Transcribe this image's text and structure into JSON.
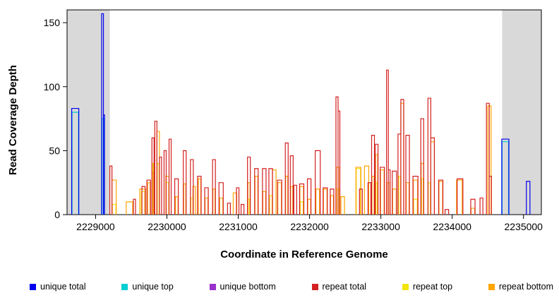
{
  "chart_data": {
    "type": "line",
    "title": "",
    "xlabel": "Coordinate in Reference Genome",
    "ylabel": "Read Coverage Depth",
    "xlim": [
      2228600,
      2235250
    ],
    "ylim": [
      0,
      160
    ],
    "xticks": [
      2229000,
      2230000,
      2231000,
      2232000,
      2233000,
      2234000,
      2235000
    ],
    "yticks": [
      0,
      50,
      100,
      150
    ],
    "grid": false,
    "legend_position": "bottom",
    "shade_color": "#d9d9d9",
    "shaded_regions": [
      [
        2228600,
        2229200
      ],
      [
        2234700,
        2235250
      ]
    ],
    "legend": [
      {
        "label": "unique total",
        "color": "#0000EE"
      },
      {
        "label": "unique top",
        "color": "#00CED1"
      },
      {
        "label": "unique bottom",
        "color": "#9932CC"
      },
      {
        "label": "repeat total",
        "color": "#D42020"
      },
      {
        "label": "repeat top",
        "color": "#F2E50B"
      },
      {
        "label": "repeat bottom",
        "color": "#FFA500"
      }
    ],
    "draw_order": [
      "repeat top",
      "repeat bottom",
      "repeat total",
      "unique top",
      "unique bottom",
      "unique total"
    ],
    "segments": [
      [
        "unique top",
        2228670,
        2228760,
        80
      ],
      [
        "unique total",
        2228665,
        2228765,
        83
      ],
      [
        "unique top",
        2229090,
        2229120,
        75
      ],
      [
        "unique total",
        2229085,
        2229110,
        157
      ],
      [
        "unique total",
        2229110,
        2229125,
        78
      ],
      [
        "repeat total",
        2229200,
        2229230,
        38
      ],
      [
        "repeat bottom",
        2229230,
        2229290,
        27
      ],
      [
        "repeat top",
        2229235,
        2229285,
        8
      ],
      [
        "repeat bottom",
        2229430,
        2229520,
        10
      ],
      [
        "repeat total",
        2229530,
        2229560,
        12
      ],
      [
        "repeat bottom",
        2229620,
        2229700,
        20
      ],
      [
        "repeat top",
        2229640,
        2229690,
        18
      ],
      [
        "repeat total",
        2229650,
        2229695,
        22
      ],
      [
        "repeat total",
        2229720,
        2229770,
        27
      ],
      [
        "repeat bottom",
        2229730,
        2229765,
        25
      ],
      [
        "repeat total",
        2229790,
        2229820,
        60
      ],
      [
        "repeat bottom",
        2229795,
        2229815,
        33
      ],
      [
        "repeat top",
        2229798,
        2229812,
        40
      ],
      [
        "repeat total",
        2229830,
        2229860,
        73
      ],
      [
        "repeat bottom",
        2229860,
        2229895,
        65
      ],
      [
        "repeat top",
        2229865,
        2229890,
        40
      ],
      [
        "repeat total",
        2229895,
        2229925,
        45
      ],
      [
        "repeat total",
        2229960,
        2229990,
        50
      ],
      [
        "repeat bottom",
        2229985,
        2230030,
        30
      ],
      [
        "repeat top",
        2229990,
        2230025,
        25
      ],
      [
        "repeat total",
        2230030,
        2230060,
        59
      ],
      [
        "repeat total",
        2230110,
        2230160,
        28
      ],
      [
        "repeat bottom",
        2230120,
        2230155,
        14
      ],
      [
        "repeat total",
        2230230,
        2230270,
        50
      ],
      [
        "repeat bottom",
        2230235,
        2230265,
        24
      ],
      [
        "repeat total",
        2230330,
        2230370,
        43
      ],
      [
        "repeat top",
        2230335,
        2230365,
        13
      ],
      [
        "repeat bottom",
        2230365,
        2230400,
        22
      ],
      [
        "repeat total",
        2230430,
        2230480,
        30
      ],
      [
        "repeat bottom",
        2230440,
        2230475,
        28
      ],
      [
        "repeat total",
        2230530,
        2230580,
        21
      ],
      [
        "repeat bottom",
        2230535,
        2230575,
        13
      ],
      [
        "repeat total",
        2230640,
        2230680,
        43
      ],
      [
        "repeat bottom",
        2230645,
        2230675,
        20
      ],
      [
        "repeat total",
        2230730,
        2230790,
        25
      ],
      [
        "repeat bottom",
        2230740,
        2230785,
        13
      ],
      [
        "repeat total",
        2230850,
        2230890,
        9
      ],
      [
        "repeat bottom",
        2230930,
        2230980,
        17
      ],
      [
        "repeat total",
        2230975,
        2231010,
        21
      ],
      [
        "repeat total",
        2231040,
        2231080,
        8
      ],
      [
        "repeat total",
        2231130,
        2231170,
        45
      ],
      [
        "repeat bottom",
        2231135,
        2231165,
        25
      ],
      [
        "repeat top",
        2231140,
        2231160,
        12
      ],
      [
        "repeat total",
        2231230,
        2231280,
        36
      ],
      [
        "repeat bottom",
        2231235,
        2231275,
        30
      ],
      [
        "repeat total",
        2231340,
        2231390,
        36
      ],
      [
        "repeat bottom",
        2231345,
        2231385,
        18
      ],
      [
        "repeat total",
        2231430,
        2231480,
        36
      ],
      [
        "repeat bottom",
        2231480,
        2231530,
        35
      ],
      [
        "repeat top",
        2231440,
        2231475,
        15
      ],
      [
        "repeat total",
        2231550,
        2231610,
        27
      ],
      [
        "repeat bottom",
        2231555,
        2231605,
        25
      ],
      [
        "repeat total",
        2231660,
        2231700,
        56
      ],
      [
        "repeat bottom",
        2231665,
        2231695,
        30
      ],
      [
        "repeat total",
        2231730,
        2231770,
        46
      ],
      [
        "repeat bottom",
        2231735,
        2231765,
        22
      ],
      [
        "repeat total",
        2231780,
        2231820,
        23
      ],
      [
        "repeat total",
        2231860,
        2231920,
        24
      ],
      [
        "repeat bottom",
        2231865,
        2231915,
        22
      ],
      [
        "repeat top",
        2231870,
        2231910,
        10
      ],
      [
        "repeat total",
        2231970,
        2232020,
        28
      ],
      [
        "repeat bottom",
        2231975,
        2232015,
        12
      ],
      [
        "repeat total",
        2232080,
        2232150,
        50
      ],
      [
        "repeat bottom",
        2232090,
        2232140,
        20
      ],
      [
        "repeat total",
        2232190,
        2232250,
        21
      ],
      [
        "repeat bottom",
        2232195,
        2232245,
        20
      ],
      [
        "repeat total",
        2232290,
        2232340,
        20
      ],
      [
        "repeat bottom",
        2232295,
        2232335,
        15
      ],
      [
        "repeat total",
        2232370,
        2232400,
        92
      ],
      [
        "repeat total",
        2232400,
        2232425,
        81
      ],
      [
        "repeat bottom",
        2232375,
        2232420,
        37
      ],
      [
        "repeat top",
        2232380,
        2232415,
        20
      ],
      [
        "repeat bottom",
        2232440,
        2232490,
        14
      ],
      [
        "repeat bottom",
        2232650,
        2232720,
        37
      ],
      [
        "repeat top",
        2232655,
        2232715,
        36
      ],
      [
        "repeat total",
        2232700,
        2232740,
        20
      ],
      [
        "repeat bottom",
        2232770,
        2232830,
        38
      ],
      [
        "repeat total",
        2232820,
        2232860,
        25
      ],
      [
        "repeat total",
        2232870,
        2232910,
        62
      ],
      [
        "repeat bottom",
        2232875,
        2232905,
        30
      ],
      [
        "repeat total",
        2232920,
        2232960,
        55
      ],
      [
        "repeat bottom",
        2232925,
        2232955,
        47
      ],
      [
        "repeat top",
        2232930,
        2232950,
        25
      ],
      [
        "repeat total",
        2232990,
        2233050,
        37
      ],
      [
        "repeat bottom",
        2232995,
        2233045,
        35
      ],
      [
        "repeat total",
        2233080,
        2233105,
        113
      ],
      [
        "repeat total",
        2233105,
        2233130,
        35
      ],
      [
        "repeat bottom",
        2233085,
        2233125,
        25
      ],
      [
        "repeat total",
        2233160,
        2233220,
        34
      ],
      [
        "repeat bottom",
        2233165,
        2233215,
        20
      ],
      [
        "repeat total",
        2233240,
        2233280,
        63
      ],
      [
        "repeat top",
        2233250,
        2233275,
        30
      ],
      [
        "repeat total",
        2233280,
        2233320,
        90
      ],
      [
        "repeat bottom",
        2233280,
        2233320,
        87
      ],
      [
        "repeat total",
        2233350,
        2233400,
        62
      ],
      [
        "repeat bottom",
        2233355,
        2233395,
        25
      ],
      [
        "repeat total",
        2233450,
        2233520,
        30
      ],
      [
        "repeat bottom",
        2233455,
        2233515,
        27
      ],
      [
        "repeat top",
        2233460,
        2233510,
        12
      ],
      [
        "repeat total",
        2233560,
        2233600,
        75
      ],
      [
        "repeat bottom",
        2233565,
        2233600,
        40
      ],
      [
        "repeat top",
        2233570,
        2233595,
        28
      ],
      [
        "repeat total",
        2233660,
        2233700,
        91
      ],
      [
        "repeat top",
        2233665,
        2233695,
        25
      ],
      [
        "repeat total",
        2233700,
        2233750,
        60
      ],
      [
        "repeat bottom",
        2233700,
        2233750,
        57
      ],
      [
        "repeat total",
        2233810,
        2233870,
        27
      ],
      [
        "repeat bottom",
        2233815,
        2233865,
        26
      ],
      [
        "repeat total",
        2233900,
        2233950,
        4
      ],
      [
        "repeat bottom",
        2234060,
        2234140,
        27
      ],
      [
        "repeat total",
        2234070,
        2234150,
        28
      ],
      [
        "repeat total",
        2234260,
        2234320,
        12
      ],
      [
        "repeat bottom",
        2234265,
        2234315,
        5
      ],
      [
        "repeat total",
        2234390,
        2234430,
        13
      ],
      [
        "repeat total",
        2234480,
        2234520,
        87
      ],
      [
        "repeat bottom",
        2234500,
        2234545,
        85
      ],
      [
        "repeat total",
        2234520,
        2234550,
        30
      ],
      [
        "unique top",
        2234700,
        2234790,
        57
      ],
      [
        "unique total",
        2234695,
        2234795,
        59
      ],
      [
        "unique total",
        2235040,
        2235090,
        26
      ]
    ]
  }
}
